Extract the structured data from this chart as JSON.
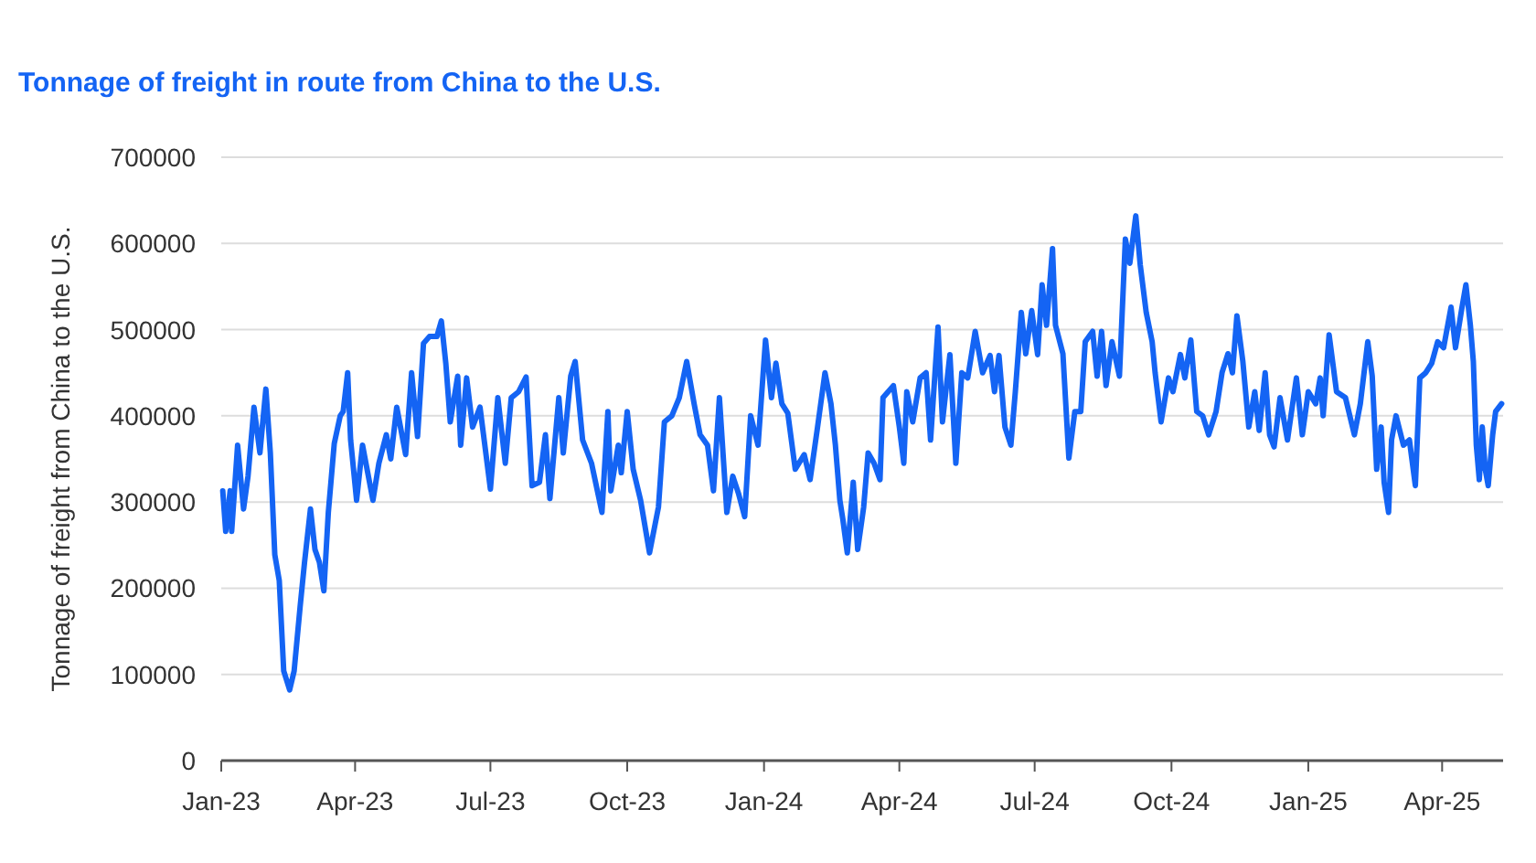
{
  "chart_data": {
    "type": "line",
    "title": "Tonnage of freight in route from China to the U.S.",
    "ylabel": "Tonnage of freight from China to the U.S.",
    "xlim": [
      "2023-01-01",
      "2025-05-12"
    ],
    "xticks": [
      {
        "value": "2023-01-01",
        "label": "Jan-23"
      },
      {
        "value": "2023-04-01",
        "label": "Apr-23"
      },
      {
        "value": "2023-07-01",
        "label": "Jul-23"
      },
      {
        "value": "2023-10-01",
        "label": "Oct-23"
      },
      {
        "value": "2024-01-01",
        "label": "Jan-24"
      },
      {
        "value": "2024-04-01",
        "label": "Apr-24"
      },
      {
        "value": "2024-07-01",
        "label": "Jul-24"
      },
      {
        "value": "2024-10-01",
        "label": "Oct-24"
      },
      {
        "value": "2025-01-01",
        "label": "Jan-25"
      },
      {
        "value": "2025-04-01",
        "label": "Apr-25"
      }
    ],
    "ylim": [
      0,
      700000
    ],
    "yticks": [
      0,
      100000,
      200000,
      300000,
      400000,
      500000,
      600000,
      700000
    ],
    "grid": "y",
    "marker": "none",
    "line_style": "solid",
    "x": [
      "2023-01-02",
      "2023-01-04",
      "2023-01-07",
      "2023-01-08",
      "2023-01-12",
      "2023-01-16",
      "2023-01-19",
      "2023-01-23",
      "2023-01-27",
      "2023-01-31",
      "2023-02-03",
      "2023-02-06",
      "2023-02-09",
      "2023-02-12",
      "2023-02-16",
      "2023-02-19",
      "2023-02-23",
      "2023-02-26",
      "2023-03-02",
      "2023-03-05",
      "2023-03-08",
      "2023-03-11",
      "2023-03-14",
      "2023-03-18",
      "2023-03-22",
      "2023-03-24",
      "2023-03-27",
      "2023-03-29",
      "2023-04-02",
      "2023-04-06",
      "2023-04-13",
      "2023-04-17",
      "2023-04-22",
      "2023-04-25",
      "2023-04-29",
      "2023-05-05",
      "2023-05-09",
      "2023-05-13",
      "2023-05-17",
      "2023-05-21",
      "2023-05-26",
      "2023-05-29",
      "2023-06-01",
      "2023-06-04",
      "2023-06-09",
      "2023-06-11",
      "2023-06-15",
      "2023-06-19",
      "2023-06-24",
      "2023-07-01",
      "2023-07-06",
      "2023-07-11",
      "2023-07-15",
      "2023-07-20",
      "2023-07-25",
      "2023-07-29",
      "2023-08-03",
      "2023-08-07",
      "2023-08-10",
      "2023-08-16",
      "2023-08-19",
      "2023-08-24",
      "2023-08-27",
      "2023-09-01",
      "2023-09-07",
      "2023-09-14",
      "2023-09-18",
      "2023-09-20",
      "2023-09-25",
      "2023-09-27",
      "2023-10-01",
      "2023-10-05",
      "2023-10-10",
      "2023-10-16",
      "2023-10-22",
      "2023-10-26",
      "2023-10-31",
      "2023-11-05",
      "2023-11-10",
      "2023-11-15",
      "2023-11-19",
      "2023-11-24",
      "2023-11-28",
      "2023-12-02",
      "2023-12-07",
      "2023-12-11",
      "2023-12-15",
      "2023-12-19",
      "2023-12-23",
      "2023-12-28",
      "2024-01-02",
      "2024-01-06",
      "2024-01-09",
      "2024-01-13",
      "2024-01-17",
      "2024-01-22",
      "2024-01-28",
      "2024-02-01",
      "2024-02-06",
      "2024-02-11",
      "2024-02-15",
      "2024-02-18",
      "2024-02-21",
      "2024-02-23",
      "2024-02-26",
      "2024-03-01",
      "2024-03-04",
      "2024-03-08",
      "2024-03-11",
      "2024-03-15",
      "2024-03-19",
      "2024-03-21",
      "2024-03-28",
      "2024-04-01",
      "2024-04-04",
      "2024-04-06",
      "2024-04-10",
      "2024-04-15",
      "2024-04-19",
      "2024-04-22",
      "2024-04-27",
      "2024-04-30",
      "2024-05-05",
      "2024-05-09",
      "2024-05-13",
      "2024-05-17",
      "2024-05-22",
      "2024-05-27",
      "2024-06-01",
      "2024-06-04",
      "2024-06-07",
      "2024-06-11",
      "2024-06-15",
      "2024-06-18",
      "2024-06-22",
      "2024-06-25",
      "2024-06-29",
      "2024-07-03",
      "2024-07-06",
      "2024-07-09",
      "2024-07-13",
      "2024-07-15",
      "2024-07-20",
      "2024-07-24",
      "2024-07-28",
      "2024-08-01",
      "2024-08-04",
      "2024-08-09",
      "2024-08-12",
      "2024-08-15",
      "2024-08-18",
      "2024-08-22",
      "2024-08-27",
      "2024-08-31",
      "2024-09-03",
      "2024-09-07",
      "2024-09-10",
      "2024-09-14",
      "2024-09-18",
      "2024-09-20",
      "2024-09-24",
      "2024-09-29",
      "2024-10-02",
      "2024-10-07",
      "2024-10-10",
      "2024-10-14",
      "2024-10-18",
      "2024-10-22",
      "2024-10-26",
      "2024-10-31",
      "2024-11-04",
      "2024-11-08",
      "2024-11-11",
      "2024-11-14",
      "2024-11-18",
      "2024-11-22",
      "2024-11-26",
      "2024-11-29",
      "2024-12-03",
      "2024-12-06",
      "2024-12-09",
      "2024-12-13",
      "2024-12-18",
      "2024-12-24",
      "2024-12-28",
      "2025-01-01",
      "2025-01-06",
      "2025-01-09",
      "2025-01-11",
      "2025-01-15",
      "2025-01-20",
      "2025-01-26",
      "2025-02-01",
      "2025-02-05",
      "2025-02-10",
      "2025-02-13",
      "2025-02-16",
      "2025-02-19",
      "2025-02-21",
      "2025-02-24",
      "2025-02-26",
      "2025-03-01",
      "2025-03-06",
      "2025-03-10",
      "2025-03-14",
      "2025-03-17",
      "2025-03-21",
      "2025-03-25",
      "2025-03-29",
      "2025-04-02",
      "2025-04-07",
      "2025-04-10",
      "2025-04-14",
      "2025-04-17",
      "2025-04-20",
      "2025-04-22",
      "2025-04-24",
      "2025-04-26",
      "2025-04-28",
      "2025-04-30",
      "2025-05-02",
      "2025-05-05",
      "2025-05-07",
      "2025-05-11"
    ],
    "series": [
      {
        "color": "#1464f4",
        "values": [
          313000,
          266000,
          313000,
          266000,
          366000,
          292000,
          330000,
          410000,
          357000,
          431000,
          357000,
          239000,
          209000,
          104000,
          82000,
          104000,
          178000,
          230000,
          292000,
          245000,
          230000,
          197000,
          288000,
          368000,
          400000,
          405000,
          450000,
          372000,
          302000,
          366000,
          302000,
          345000,
          378000,
          350000,
          410000,
          355000,
          450000,
          376000,
          484000,
          492000,
          492000,
          510000,
          461000,
          393000,
          446000,
          366000,
          444000,
          387000,
          410000,
          315000,
          421000,
          345000,
          421000,
          428000,
          445000,
          319000,
          323000,
          378000,
          304000,
          421000,
          357000,
          446000,
          463000,
          372000,
          345000,
          288000,
          405000,
          313000,
          366000,
          334000,
          405000,
          338000,
          302000,
          241000,
          294000,
          393000,
          400000,
          421000,
          463000,
          414000,
          378000,
          366000,
          313000,
          421000,
          288000,
          330000,
          309000,
          283000,
          400000,
          366000,
          488000,
          421000,
          461000,
          414000,
          403000,
          338000,
          355000,
          326000,
          387000,
          450000,
          414000,
          366000,
          302000,
          280000,
          241000,
          323000,
          245000,
          294000,
          357000,
          345000,
          326000,
          421000,
          435000,
          387000,
          345000,
          428000,
          393000,
          444000,
          450000,
          372000,
          503000,
          393000,
          471000,
          345000,
          450000,
          444000,
          498000,
          450000,
          470000,
          428000,
          470000,
          387000,
          366000,
          428000,
          520000,
          472000,
          522000,
          471000,
          552000,
          505000,
          594000,
          505000,
          472000,
          351000,
          405000,
          405000,
          486000,
          498000,
          446000,
          498000,
          435000,
          486000,
          446000,
          605000,
          577000,
          632000,
          575000,
          520000,
          486000,
          450000,
          393000,
          444000,
          428000,
          471000,
          444000,
          488000,
          405000,
          400000,
          378000,
          405000,
          450000,
          472000,
          450000,
          516000,
          463000,
          387000,
          428000,
          383000,
          450000,
          378000,
          364000,
          421000,
          372000,
          444000,
          378000,
          428000,
          414000,
          444000,
          400000,
          494000,
          428000,
          421000,
          378000,
          414000,
          486000,
          446000,
          338000,
          387000,
          323000,
          288000,
          372000,
          400000,
          366000,
          372000,
          319000,
          444000,
          450000,
          461000,
          486000,
          479000,
          526000,
          479000,
          522000,
          552000,
          505000,
          463000,
          366000,
          326000,
          387000,
          338000,
          319000,
          378000,
          405000,
          414000
        ]
      }
    ]
  }
}
